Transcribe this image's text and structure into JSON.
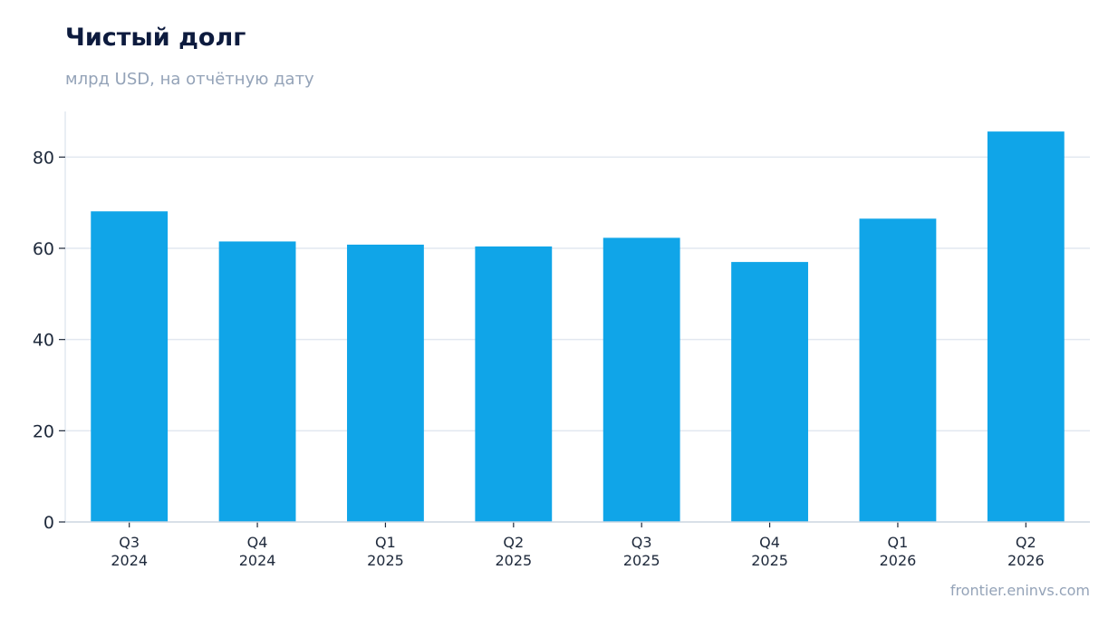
{
  "header": {
    "title": "Чистый долг",
    "subtitle": "млрд USD, на отчётную дату"
  },
  "footer": {
    "source": "frontier.eninvs.com"
  },
  "colors": {
    "bar": "#10a5e8",
    "grid": "#e2e8f0",
    "axis": "#cbd5e1",
    "title": "#0d1b3e",
    "muted": "#94a3b8"
  },
  "chart_data": {
    "type": "bar",
    "title": "Чистый долг",
    "subtitle": "млрд USD, на отчётную дату",
    "xlabel": "",
    "ylabel": "",
    "categories": [
      [
        "Q3",
        "2024"
      ],
      [
        "Q4",
        "2024"
      ],
      [
        "Q1",
        "2025"
      ],
      [
        "Q2",
        "2025"
      ],
      [
        "Q3",
        "2025"
      ],
      [
        "Q4",
        "2025"
      ],
      [
        "Q1",
        "2026"
      ],
      [
        "Q2",
        "2026"
      ]
    ],
    "values": [
      68.1,
      61.5,
      60.8,
      60.4,
      62.3,
      57.0,
      66.5,
      85.6
    ],
    "yticks": [
      0,
      20,
      40,
      60,
      80
    ],
    "ylim": [
      0,
      90
    ],
    "grid": true,
    "legend": "none"
  }
}
